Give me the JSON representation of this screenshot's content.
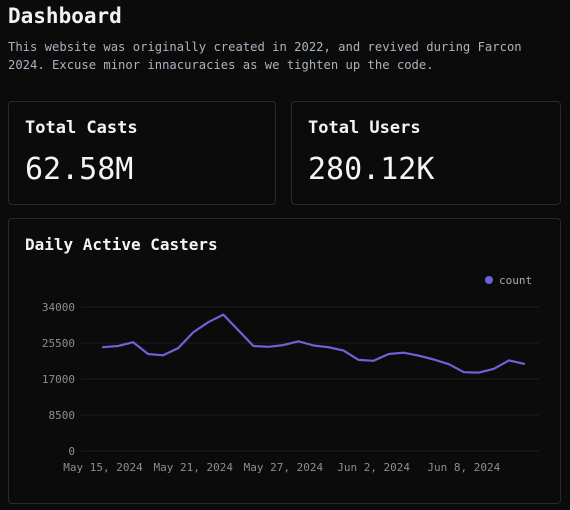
{
  "header": {
    "title": "Dashboard",
    "subtitle": "This website was originally created in 2022, and revived during Farcon 2024. Excuse minor innacuracies as we tighten up the code."
  },
  "stats": [
    {
      "label": "Total Casts",
      "value": "62.58M"
    },
    {
      "label": "Total Users",
      "value": "280.12K"
    }
  ],
  "chart": {
    "title": "Daily Active Casters",
    "legend_label": "count",
    "line_color": "#6c63d9"
  },
  "chart_data": {
    "type": "line",
    "title": "Daily Active Casters",
    "x": [
      "2024-05-15",
      "2024-05-16",
      "2024-05-17",
      "2024-05-18",
      "2024-05-19",
      "2024-05-20",
      "2024-05-21",
      "2024-05-22",
      "2024-05-23",
      "2024-05-24",
      "2024-05-25",
      "2024-05-26",
      "2024-05-27",
      "2024-05-28",
      "2024-05-29",
      "2024-05-30",
      "2024-05-31",
      "2024-06-01",
      "2024-06-02",
      "2024-06-03",
      "2024-06-04",
      "2024-06-05",
      "2024-06-06",
      "2024-06-07",
      "2024-06-08",
      "2024-06-09",
      "2024-06-10",
      "2024-06-11",
      "2024-06-12"
    ],
    "series": [
      {
        "name": "count",
        "values": [
          24500,
          24800,
          25700,
          22900,
          22600,
          24300,
          28000,
          30400,
          32200,
          28500,
          24800,
          24600,
          25000,
          25900,
          24900,
          24500,
          23700,
          21500,
          21300,
          22900,
          23200,
          22500,
          21600,
          20500,
          18600,
          18500,
          19400,
          21400,
          20600
        ]
      }
    ],
    "xticks": [
      "May 15, 2024",
      "May 21, 2024",
      "May 27, 2024",
      "Jun 2, 2024",
      "Jun 8, 2024"
    ],
    "yticks": [
      "0",
      "8500",
      "17000",
      "25500",
      "34000"
    ],
    "ylim": [
      0,
      34000
    ],
    "grid": true,
    "legend": "top-right"
  }
}
